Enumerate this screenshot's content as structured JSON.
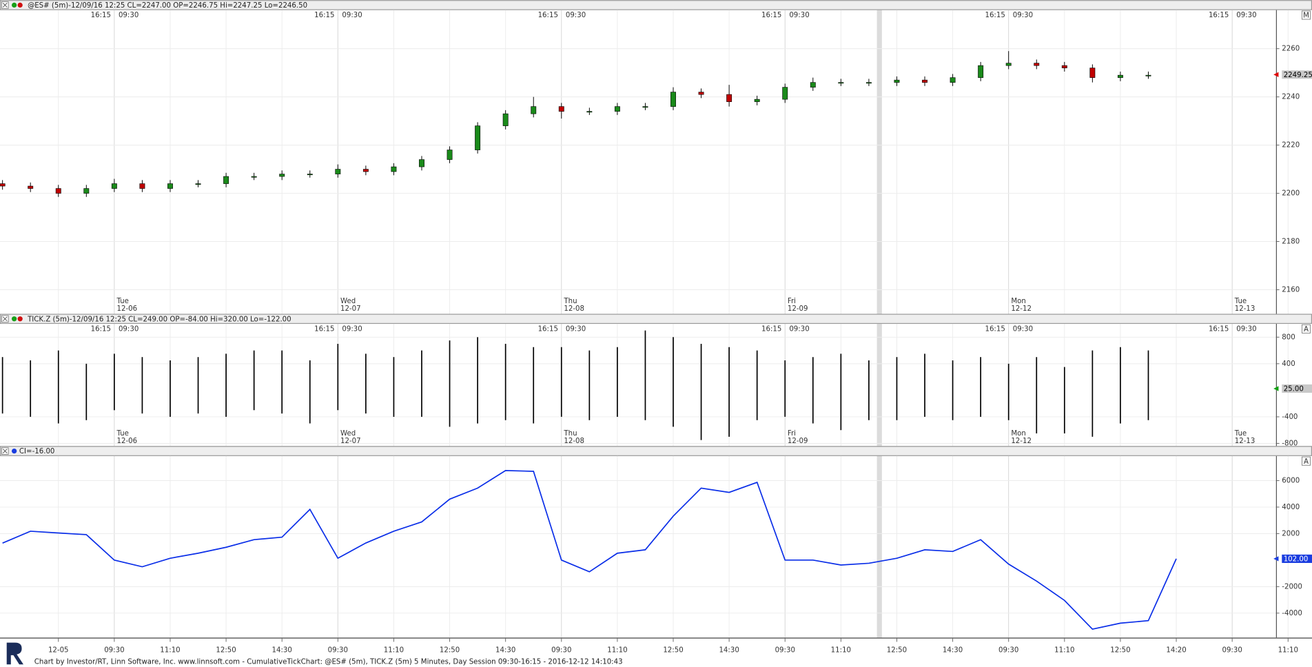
{
  "chart_data": [
    {
      "type": "candlestick",
      "header": "@ES# (5m)-12/09/16 12:25 CL=2247.00 OP=2246.75 Hi=2247.25 Lo=2246.50",
      "ylim": [
        2150,
        2276
      ],
      "yticks": [
        2160,
        2180,
        2200,
        2220,
        2240,
        2260
      ],
      "open": [
        2204,
        2203,
        2202,
        2200,
        2202,
        2204,
        2202,
        2204,
        2204,
        2207,
        2207,
        2208,
        2208,
        2210,
        2209,
        2211,
        2214,
        2218,
        2228,
        2233,
        2236,
        2234,
        2234,
        2236,
        2236,
        2242,
        2241,
        2238,
        2239,
        2244,
        2246,
        2246,
        2246,
        2247,
        2246,
        2248,
        2253,
        2254,
        2253,
        2252,
        2248,
        2249,
        null,
        null,
        null,
        null,
        null
      ],
      "high": [
        2205.5,
        2204.5,
        2203.5,
        2203.5,
        2206,
        2205.5,
        2205.5,
        2205.5,
        2208.5,
        2208.5,
        2209.5,
        2209.5,
        2212,
        2211.5,
        2212.5,
        2215.5,
        2219.5,
        2229.5,
        2234.5,
        2240,
        2237.5,
        2235.5,
        2237.5,
        2237.5,
        2244,
        2243.5,
        2245,
        2240.5,
        2245.5,
        2248,
        2247.5,
        2247.5,
        2248.5,
        2248.5,
        2249.5,
        2254.5,
        2259,
        2255.5,
        2254.5,
        2253.5,
        2250.5,
        2250.5,
        null,
        null,
        null,
        null,
        null
      ],
      "low": [
        2201.5,
        2200.5,
        2198.5,
        2198.5,
        2200.5,
        2200.5,
        2200.5,
        2202.5,
        2202.5,
        2205.5,
        2205.5,
        2206.5,
        2206.5,
        2207.5,
        2207.5,
        2209.5,
        2212.5,
        2216.5,
        2226.5,
        2231.5,
        2231,
        2232.5,
        2232.5,
        2234.5,
        2234.5,
        2239.5,
        2236,
        2236.5,
        2237.5,
        2242.5,
        2244.5,
        2244.5,
        2244.5,
        2244.5,
        2244.5,
        2246.5,
        2251.5,
        2251.5,
        2250.5,
        2246,
        2246.5,
        2247.5,
        null,
        null,
        null,
        null,
        null
      ],
      "close": [
        2203,
        2202,
        2200,
        2202,
        2204,
        2202,
        2204,
        2204,
        2207,
        2207,
        2208,
        2208,
        2210,
        2209,
        2211,
        2214,
        2218,
        2228,
        2233,
        2236,
        2234,
        2234,
        2236,
        2236,
        2242,
        2241,
        2238,
        2239,
        2244,
        2246,
        2246,
        2246,
        2247,
        2246,
        2248,
        2253,
        2254,
        2253,
        2252,
        2248,
        2249,
        2249,
        null,
        null,
        null,
        null,
        null
      ],
      "up_color": "#1a8a1a",
      "down_color": "#c00000",
      "wick_color": "#000000",
      "grid": true,
      "last": {
        "value": 2249.25,
        "label": "2249.25",
        "background": "#c8c8c8",
        "text_color": "#000000",
        "marker_color": "#e00000"
      }
    },
    {
      "type": "range_bar",
      "header": "TICK.Z (5m)-12/09/16 12:25 CL=249.00 OP=-84.00 Hi=320.00 Lo=-122.00",
      "ylim": [
        -840,
        1000
      ],
      "yticks": [
        -800,
        -400,
        400,
        800
      ],
      "high": [
        500,
        450,
        600,
        400,
        550,
        500,
        450,
        500,
        550,
        600,
        600,
        450,
        700,
        550,
        500,
        600,
        750,
        800,
        700,
        650,
        650,
        600,
        650,
        900,
        800,
        700,
        650,
        600,
        450,
        500,
        550,
        450,
        500,
        550,
        450,
        500,
        400,
        500,
        350,
        600,
        650,
        600,
        null,
        null,
        null,
        null,
        null
      ],
      "low": [
        -350,
        -400,
        -500,
        -450,
        -300,
        -350,
        -400,
        -350,
        -400,
        -300,
        -350,
        -500,
        -300,
        -350,
        -400,
        -400,
        -550,
        -500,
        -450,
        -500,
        -400,
        -450,
        -400,
        -450,
        -550,
        -750,
        -700,
        -450,
        -400,
        -500,
        -600,
        -450,
        -450,
        -400,
        -450,
        -400,
        -450,
        -650,
        -650,
        -700,
        -500,
        -450,
        null,
        null,
        null,
        null,
        null
      ],
      "color": "#000000",
      "grid": true,
      "last": {
        "value": 25,
        "label": "25.00",
        "background": "#c8c8c8",
        "text_color": "#000000",
        "marker_color": "#10a010"
      }
    },
    {
      "type": "line",
      "header": "CI=-16.00",
      "ylim": [
        -5850,
        7850
      ],
      "yticks": [
        -4000,
        -2000,
        2000,
        4000,
        6000
      ],
      "categories": [
        null,
        null,
        "12-05",
        null,
        "09:30",
        null,
        "11:10",
        null,
        "12:50",
        null,
        "14:30",
        null,
        "09:30",
        null,
        "11:10",
        null,
        "12:50",
        null,
        "14:30",
        null,
        "09:30",
        null,
        "11:10",
        null,
        "12:50",
        null,
        "14:30",
        null,
        "09:30",
        null,
        "11:10",
        null,
        "12:50",
        null,
        "14:30",
        null,
        "09:30",
        null,
        "11:10",
        null,
        "12:50",
        null,
        "14:20",
        null,
        "09:30",
        null,
        "11:10"
      ],
      "values": [
        1287,
        2178,
        2051,
        1924,
        0,
        -500,
        140,
        520,
        970,
        1540,
        1730,
        3830,
        140,
        1290,
        2180,
        2880,
        4600,
        5430,
        6760,
        6700,
        0,
        -880,
        520,
        780,
        3320,
        5430,
        5110,
        5870,
        0,
        0,
        -370,
        -240,
        140,
        780,
        650,
        1540,
        -300,
        -1580,
        -3040,
        -5210,
        -4760,
        -4570,
        102,
        null,
        null,
        null,
        null
      ],
      "color": "#0a2ee8",
      "grid": true,
      "last": {
        "value": 102,
        "label": "102.00",
        "background": "#1a3de0",
        "text_color": "#ffffff",
        "marker_color": "#1a3de0"
      }
    }
  ],
  "session_labels": {
    "close": "16:15",
    "open": "09:30"
  },
  "day_labels": [
    {
      "day": "Tue",
      "date": "12-06"
    },
    {
      "day": "Wed",
      "date": "12-07"
    },
    {
      "day": "Thu",
      "date": "12-08"
    },
    {
      "day": "Fri",
      "date": "12-09"
    },
    {
      "day": "Mon",
      "date": "12-12"
    },
    {
      "day": "Tue",
      "date": "12-13"
    }
  ],
  "panel_buttons": [
    "M",
    "A",
    "A"
  ],
  "footer": "Chart by Investor/RT, Linn Software, Inc. www.linnsoft.com - CumulativeTickChart: @ES# (5m), TICK.Z (5m) 5 Minutes, Day Session 09:30-16:15 - 2016-12-12 14:10:43"
}
